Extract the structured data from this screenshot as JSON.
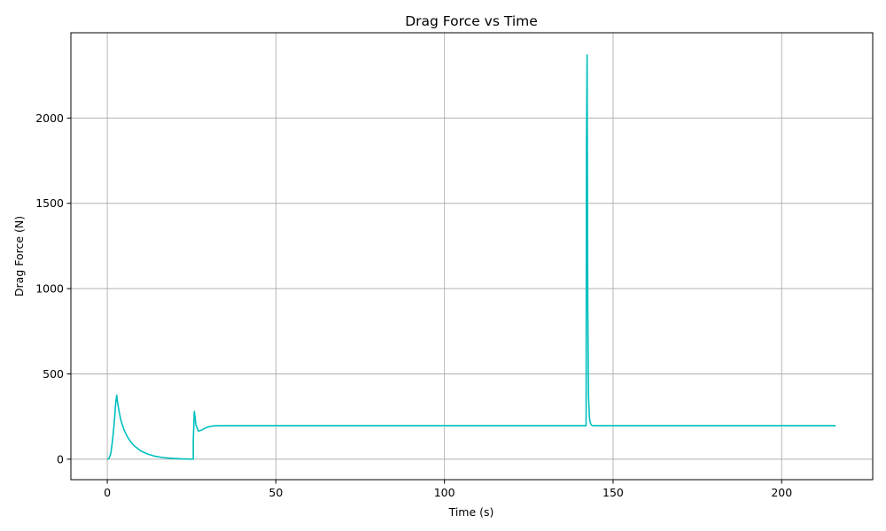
{
  "chart_data": {
    "type": "line",
    "title": "Drag Force vs Time",
    "xlabel": "Time (s)",
    "ylabel": "Drag Force (N)",
    "xlim": [
      -10.8,
      227
    ],
    "ylim": [
      -120,
      2500
    ],
    "xticks": [
      0,
      50,
      100,
      150,
      200
    ],
    "yticks": [
      0,
      500,
      1000,
      1500,
      2000
    ],
    "grid": true,
    "line_color": "#00bfbf",
    "series": [
      {
        "x": [
          0,
          0.5,
          1,
          1.5,
          2,
          2.5,
          2.8,
          3,
          3.5,
          4,
          5,
          6,
          7,
          8,
          10,
          12,
          14,
          16,
          18,
          20,
          22,
          24,
          25.5,
          25.5,
          25.8,
          26.3,
          27,
          28,
          29,
          30,
          31,
          32,
          34,
          36,
          40,
          60,
          80,
          100,
          120,
          140,
          142,
          142.1,
          142.3,
          142.5,
          142.7,
          143,
          143.3,
          143.6,
          144,
          145,
          150,
          160,
          170,
          180,
          190,
          200,
          210,
          216
        ],
        "y": [
          0,
          5,
          30,
          100,
          200,
          330,
          375,
          340,
          280,
          230,
          170,
          130,
          100,
          78,
          48,
          30,
          18,
          11,
          7,
          4,
          2,
          1,
          0,
          110,
          280,
          200,
          165,
          170,
          182,
          190,
          194,
          196,
          197,
          197,
          197,
          197,
          197,
          197,
          197,
          197,
          197,
          1800,
          2370,
          900,
          380,
          240,
          210,
          200,
          197,
          197,
          197,
          197,
          197,
          197,
          197,
          197,
          197,
          197
        ]
      }
    ]
  }
}
